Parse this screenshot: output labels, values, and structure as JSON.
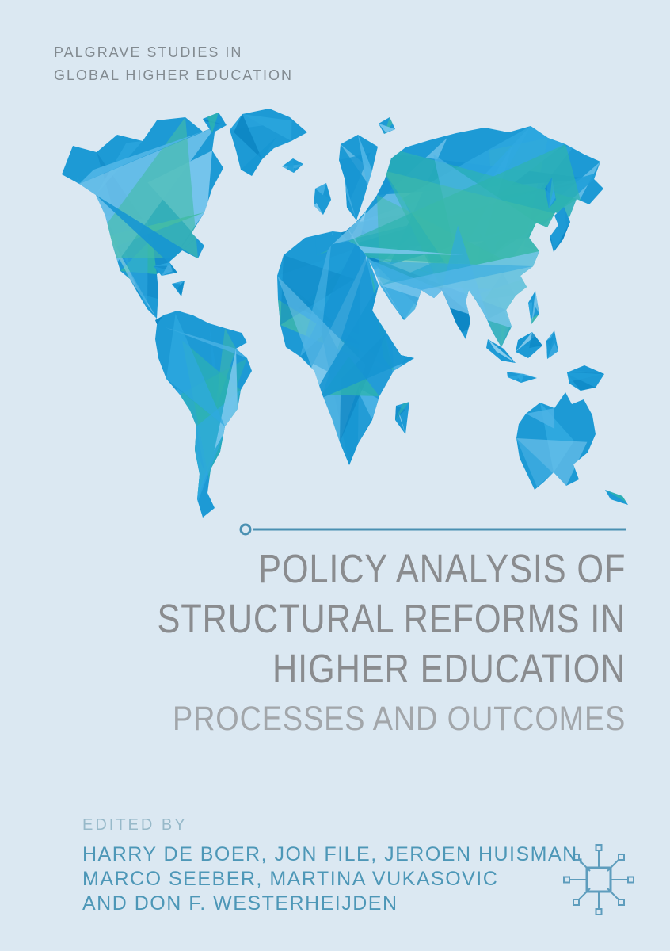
{
  "series_label": {
    "line1": "PALGRAVE STUDIES IN",
    "line2": "GLOBAL HIGHER EDUCATION"
  },
  "title": {
    "line1": "POLICY ANALYSIS OF",
    "line2": "STRUCTURAL REFORMS IN",
    "line3": "HIGHER EDUCATION"
  },
  "subtitle": "PROCESSES AND OUTCOMES",
  "editors": {
    "label": "EDITED BY",
    "line1": "HARRY DE BOER, JON FILE, JEROEN HUISMAN,",
    "line2": "MARCO SEEBER, MARTINA VUKASOVIC",
    "line3": "AND DON F. WESTERHEIJDEN"
  },
  "illustrations": {
    "map_icon": "low-poly-world-map",
    "emblem_icon": "series-network-emblem-icon",
    "rule_icon": "circle-tipped-divider-line"
  },
  "colors": {
    "background": "#dbe8f2",
    "series_text": "#828a90",
    "title_text": "#8a8c8f",
    "subtitle_text": "#a2a6aa",
    "rule": "#4a90b2",
    "editors_label_text": "#97b9c9",
    "authors_text": "#4d97b7",
    "emblem": "#5e9dbd",
    "map_base": "#1d9ad5",
    "map_palette": [
      "#0d86c4",
      "#1795d2",
      "#1f9ed9",
      "#2fa9e0",
      "#4fb5e6",
      "#7ac7ed",
      "#abdcf3",
      "#c8e4f4",
      "#2eb4ae",
      "#43bca6"
    ]
  }
}
